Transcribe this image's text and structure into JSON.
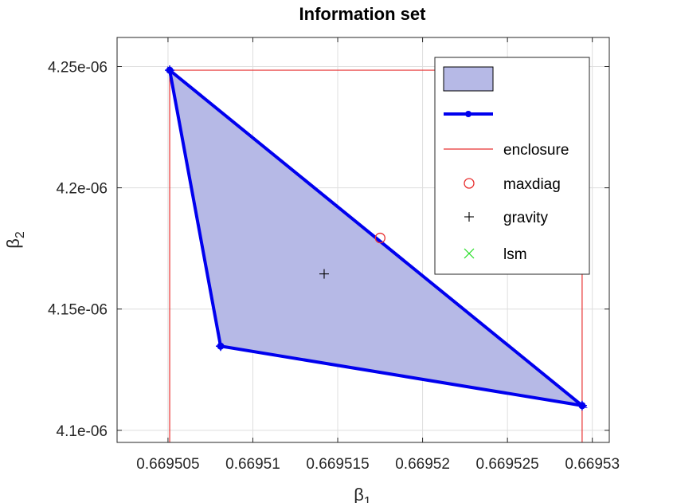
{
  "chart_data": {
    "type": "scatter",
    "title": "Information set",
    "xlabel": "β",
    "xlabel_sub": "1",
    "ylabel": "β",
    "ylabel_sub": "2",
    "xlim": [
      0.669502,
      0.669531
    ],
    "ylim": [
      4.095e-06,
      4.262e-06
    ],
    "xticks": [
      0.669505,
      0.66951,
      0.669515,
      0.66952,
      0.669525,
      0.66953
    ],
    "xtick_labels": [
      "0.669505",
      "0.66951",
      "0.669515",
      "0.66952",
      "0.669525",
      "0.66953"
    ],
    "yticks": [
      4.1e-06,
      4.15e-06,
      4.2e-06,
      4.25e-06
    ],
    "ytick_labels": [
      "4.1e-06",
      "4.15e-06",
      "4.2e-06",
      "4.25e-06"
    ],
    "grid": true,
    "legend_position": "top-right",
    "polygon": {
      "x": [
        0.6695051,
        0.6695081,
        0.6695294
      ],
      "y": [
        4.2485e-06,
        4.1347e-06,
        4.1102e-06
      ],
      "fill_color": "#b6b9e6",
      "edge_color": "#0000ee"
    },
    "enclosure": {
      "x": [
        0.6695051,
        0.6695294
      ],
      "y": [
        4.1102e-06,
        4.2485e-06
      ],
      "color": "#e83030"
    },
    "maxdiag": {
      "x": 0.6695175,
      "y": 4.1793e-06,
      "color": "#e83030"
    },
    "gravity": {
      "x": 0.6695142,
      "y": 4.1645e-06,
      "color": "#000000"
    },
    "legend": [
      {
        "type": "patch",
        "label": ""
      },
      {
        "type": "line-marker",
        "label": ""
      },
      {
        "type": "line",
        "label": "enclosure"
      },
      {
        "type": "circle",
        "label": "maxdiag"
      },
      {
        "type": "plus",
        "label": "gravity"
      },
      {
        "type": "cross",
        "label": "lsm"
      }
    ],
    "lsm_color": "#22dd22"
  }
}
